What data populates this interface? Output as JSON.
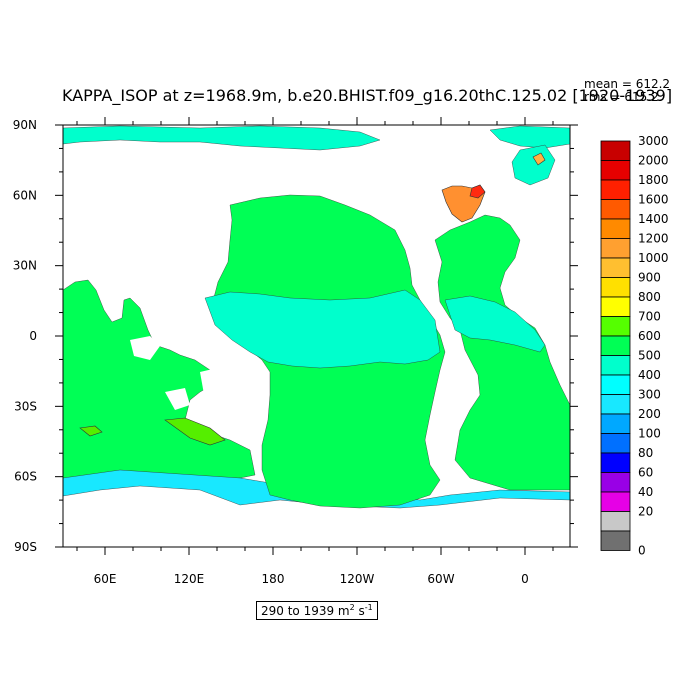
{
  "title": "KAPPA_ISOP at z=1968.9m, b.e20.BHIST.f09_g16.20thC.125.02 [1920-1939]",
  "stats": {
    "mean": "mean = 612.2",
    "rms": "rms = 615.2"
  },
  "range_label": {
    "prefix": "290 to 1939 m",
    "exp1": "2",
    "mid": " s",
    "exp2": "-1"
  },
  "axes": {
    "lat_labels": [
      "90N",
      "60N",
      "30N",
      "0",
      "30S",
      "60S",
      "90S"
    ],
    "lon_labels": [
      "60E",
      "120E",
      "180",
      "120W",
      "60W",
      "0"
    ]
  },
  "colors": {
    "land": "#ffffff",
    "ocean_main": "#00ff55",
    "ocean_equatorial": "#00ffcc",
    "ocean_cyan": "#18e8ff",
    "hotspot_orange": "#ff9030",
    "hotspot_light": "#ffb040",
    "hotspot_red": "#ff2a10",
    "high_contour": "#55ee00"
  },
  "colorbar": {
    "levels": [
      "3000",
      "2000",
      "1800",
      "1600",
      "1400",
      "1200",
      "1000",
      "900",
      "800",
      "700",
      "600",
      "500",
      "400",
      "300",
      "200",
      "100",
      "80",
      "60",
      "40",
      "20",
      "0"
    ],
    "colors": [
      "#c80000",
      "#e60000",
      "#ff2000",
      "#ff5a00",
      "#ff8a00",
      "#ffa030",
      "#ffbf30",
      "#ffe000",
      "#ffff00",
      "#55ff00",
      "#00ff55",
      "#00ffcc",
      "#00ffff",
      "#18e8ff",
      "#00a8ff",
      "#0070ff",
      "#0000ff",
      "#9900e6",
      "#e600e6",
      "#c8c8c8",
      "#707070"
    ]
  }
}
